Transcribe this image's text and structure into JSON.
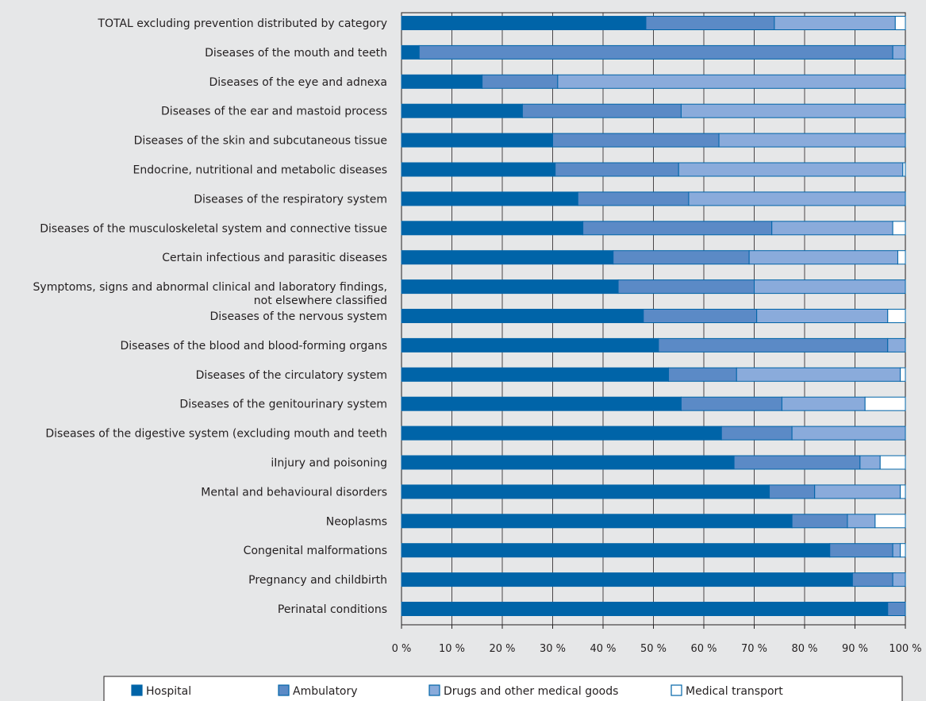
{
  "chart_data": {
    "type": "bar",
    "orientation": "horizontal",
    "stacked": true,
    "percent": true,
    "title": "",
    "xlabel": "",
    "ylabel": "",
    "xlim": [
      0,
      100
    ],
    "grid": true,
    "legend_position": "bottom",
    "x_ticks": [
      "0 %",
      "10 %",
      "20 %",
      "30 %",
      "40 %",
      "50 %",
      "60 %",
      "70 %",
      "80 %",
      "90 %",
      "100 %"
    ],
    "categories": [
      [
        "TOTAL excluding prevention distributed by category"
      ],
      [
        "Diseases of the mouth and teeth"
      ],
      [
        "Diseases of the eye and adnexa"
      ],
      [
        "Diseases of the ear and mastoid process"
      ],
      [
        "Diseases of the skin and subcutaneous tissue"
      ],
      [
        "Endocrine, nutritional and metabolic diseases"
      ],
      [
        "Diseases of the respiratory system"
      ],
      [
        "Diseases of the musculoskeletal system and connective tissue"
      ],
      [
        "Certain infectious and parasitic diseases"
      ],
      [
        "Symptoms, signs and abnormal clinical and laboratory findings,",
        "not elsewhere classified"
      ],
      [
        "Diseases of the nervous system"
      ],
      [
        "Diseases of the blood and blood-forming organs"
      ],
      [
        "Diseases of the circulatory system"
      ],
      [
        "Diseases of the genitourinary system"
      ],
      [
        "Diseases of the digestive system (excluding mouth and teeth"
      ],
      [
        "iInjury and poisoning"
      ],
      [
        "Mental and behavioural disorders"
      ],
      [
        "Neoplasms"
      ],
      [
        "Congenital malformations"
      ],
      [
        "Pregnancy and childbirth"
      ],
      [
        "Perinatal conditions"
      ]
    ],
    "series": [
      {
        "name": "Hospital",
        "color": "#0064a8",
        "values": [
          48.5,
          3.5,
          16,
          24,
          30,
          30.5,
          35,
          36,
          42,
          43,
          48,
          51,
          53,
          55.5,
          63.5,
          66,
          73,
          77.5,
          85,
          89.5,
          96.5
        ]
      },
      {
        "name": "Ambulatory",
        "color": "#5b8ac6",
        "values": [
          25.5,
          94,
          15,
          31.5,
          33,
          24.5,
          22,
          37.5,
          27,
          27,
          22.5,
          45.5,
          13.5,
          20,
          14,
          25,
          9,
          11,
          12.5,
          8,
          3.5
        ]
      },
      {
        "name": "Drugs and other medical goods",
        "color": "#8aabdb",
        "values": [
          24,
          2.5,
          69,
          44.5,
          37,
          44.5,
          43,
          24,
          29.5,
          30,
          26,
          3.5,
          32.5,
          16.5,
          22.5,
          4,
          17,
          5.5,
          1.5,
          2.5,
          0
        ]
      },
      {
        "name": "Medical transport",
        "color": "#ffffff",
        "values": [
          2,
          0,
          0,
          0,
          0,
          0.5,
          0,
          2.5,
          1.5,
          0,
          3.5,
          0,
          1,
          8,
          0,
          5,
          1,
          6,
          1,
          0,
          0
        ]
      }
    ]
  }
}
